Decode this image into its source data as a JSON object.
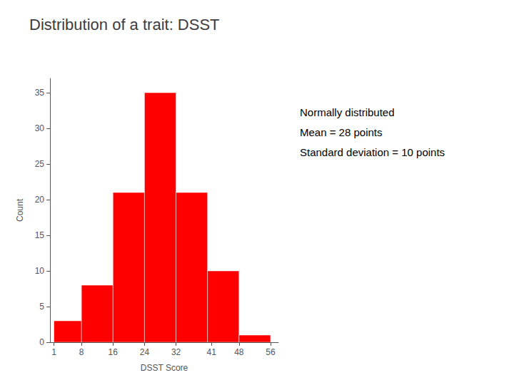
{
  "chart_data": {
    "type": "histogram",
    "title": "Distribution of a trait: DSST",
    "xlabel": "DSST Score",
    "ylabel": "Count",
    "bins": [
      1,
      8,
      16,
      24,
      32,
      40,
      48,
      56
    ],
    "values": [
      3,
      8,
      21,
      35,
      21,
      10,
      1
    ],
    "color": "#ff0000",
    "xlim": [
      0,
      58
    ],
    "ylim": [
      0,
      37
    ],
    "xticks": [
      1,
      8,
      16,
      24,
      32,
      41,
      48,
      56
    ],
    "yticks": [
      0,
      5,
      10,
      15,
      20,
      25,
      30,
      35
    ],
    "grid": false,
    "annotations": [
      "Normally distributed",
      "Mean = 28 points",
      "Standard deviation = 10 points"
    ]
  }
}
